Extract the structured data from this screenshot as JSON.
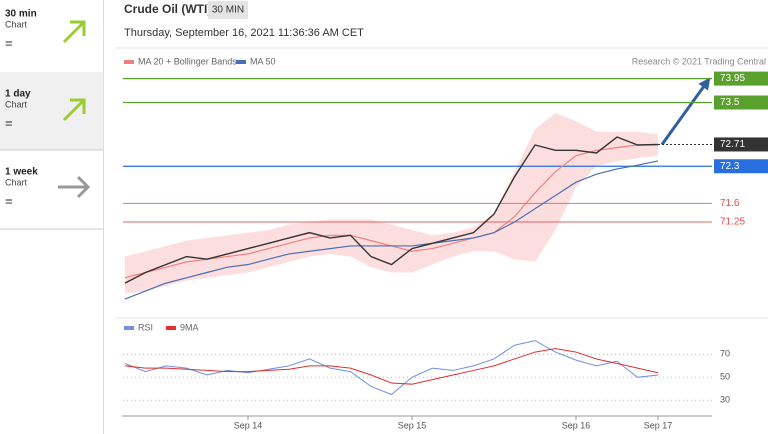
{
  "sidebar": [
    {
      "period": "30 min",
      "label": "Chart",
      "signal": "="
    },
    {
      "period": "1 day",
      "label": "Chart",
      "signal": "="
    },
    {
      "period": "1 week",
      "label": "Chart",
      "signal": "="
    }
  ],
  "chart_data": [
    {
      "type": "line",
      "title": "Crude Oil (WTI)",
      "interval": "30 MIN",
      "subtitle": "Thursday, September 16, 2021 11:36:36 AM CET",
      "credit": "Research © 2021 Trading Central",
      "ylim": [
        69.5,
        74.3
      ],
      "price": {
        "color": "#333333",
        "values": [
          70.1,
          70.3,
          70.45,
          70.6,
          70.55,
          70.65,
          70.75,
          70.85,
          70.95,
          71.05,
          70.95,
          71.0,
          70.6,
          70.45,
          70.75,
          70.85,
          70.95,
          71.05,
          71.4,
          72.1,
          72.7,
          72.6,
          72.6,
          72.55,
          72.85,
          72.7,
          72.71
        ]
      },
      "series": [
        {
          "name": "MA 20 + Bollinger Bands",
          "color": "#f08080",
          "band_color": "#fcd6d6",
          "values": [
            70.2,
            70.3,
            70.4,
            70.5,
            70.55,
            70.6,
            70.65,
            70.75,
            70.85,
            70.95,
            71.0,
            71.0,
            70.9,
            70.8,
            70.7,
            70.75,
            70.85,
            70.95,
            71.05,
            71.35,
            71.8,
            72.2,
            72.5,
            72.6,
            72.65,
            72.7,
            72.7
          ],
          "upper": [
            70.6,
            70.7,
            70.8,
            70.9,
            70.95,
            71.0,
            71.05,
            71.1,
            71.2,
            71.25,
            71.3,
            71.3,
            71.3,
            71.2,
            71.1,
            71.0,
            71.05,
            71.15,
            71.4,
            72.2,
            73.0,
            73.3,
            73.15,
            72.95,
            72.95,
            72.95,
            72.9
          ],
          "lower": [
            69.9,
            69.95,
            70.05,
            70.15,
            70.2,
            70.25,
            70.3,
            70.4,
            70.5,
            70.6,
            70.65,
            70.6,
            70.4,
            70.3,
            70.3,
            70.45,
            70.6,
            70.7,
            70.7,
            70.55,
            70.5,
            71.1,
            71.9,
            72.3,
            72.4,
            72.45,
            72.5
          ]
        },
        {
          "name": "MA 50",
          "color": "#4a6fb5",
          "values": [
            69.8,
            69.95,
            70.1,
            70.2,
            70.3,
            70.4,
            70.45,
            70.55,
            70.65,
            70.7,
            70.75,
            70.8,
            70.8,
            70.8,
            70.8,
            70.85,
            70.9,
            70.95,
            71.05,
            71.25,
            71.5,
            71.75,
            72.0,
            72.15,
            72.25,
            72.32,
            72.4
          ]
        }
      ],
      "levels": [
        {
          "value": 73.95,
          "color": "#5aa02c",
          "style": "box"
        },
        {
          "value": 73.5,
          "color": "#5aa02c",
          "style": "box"
        },
        {
          "value": 72.71,
          "color": "#333333",
          "style": "current"
        },
        {
          "value": 72.3,
          "color": "#2a6fe0",
          "style": "box"
        },
        {
          "value": 71.6,
          "color": "#e05050",
          "style": "text"
        },
        {
          "value": 71.25,
          "color": "#e05050",
          "style": "text"
        }
      ]
    },
    {
      "type": "line",
      "categories": [
        null,
        null,
        null,
        null,
        null,
        null,
        "Sep 14",
        null,
        null,
        null,
        null,
        null,
        null,
        null,
        "Sep 15",
        null,
        null,
        null,
        null,
        null,
        null,
        null,
        "Sep 16",
        null,
        null,
        null,
        "Sep 17"
      ],
      "ylim": [
        18,
        93
      ],
      "yticks": [
        70,
        50,
        30
      ],
      "grid": true,
      "series": [
        {
          "name": "RSI",
          "color": "#7090e0",
          "values": [
            62,
            55,
            60,
            58,
            52,
            56,
            54,
            57,
            60,
            66,
            58,
            55,
            42,
            35,
            50,
            58,
            56,
            60,
            66,
            78,
            82,
            72,
            65,
            60,
            64,
            50,
            52
          ]
        },
        {
          "name": "9MA",
          "color": "#e03030",
          "values": [
            60,
            58,
            58,
            57,
            56,
            55,
            55,
            56,
            57,
            60,
            60,
            58,
            52,
            45,
            44,
            48,
            52,
            56,
            60,
            66,
            72,
            75,
            72,
            66,
            62,
            58,
            54
          ]
        }
      ]
    }
  ]
}
